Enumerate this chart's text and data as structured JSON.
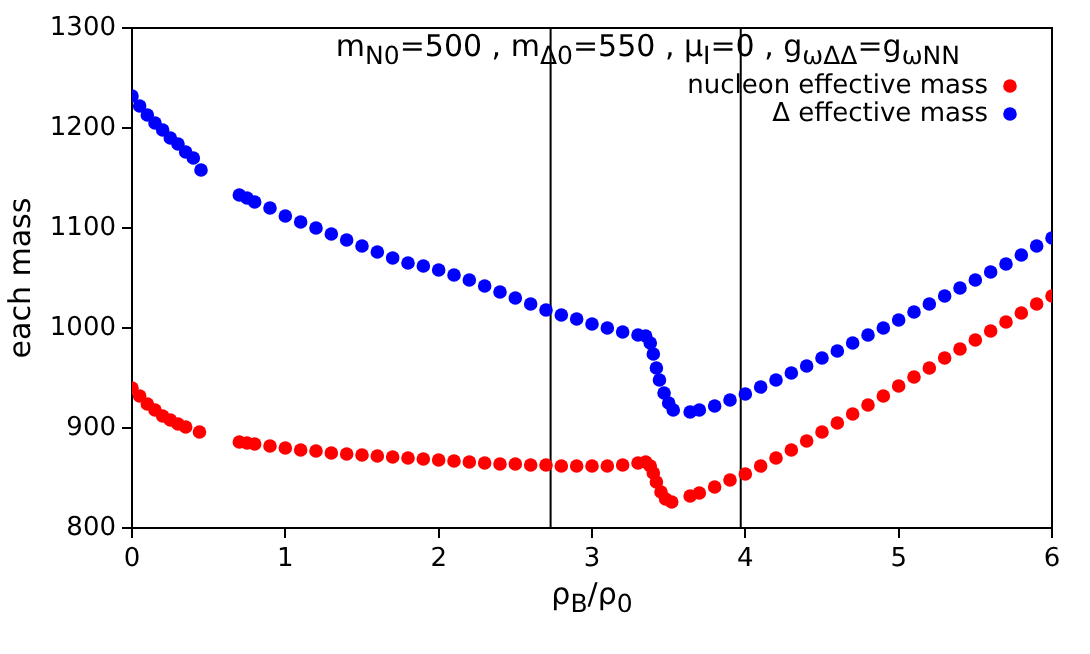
{
  "chart_data": {
    "type": "scatter",
    "title": "m$_{N0}$=500 , m$_{Δ0}$=550 , μ$_{I}$=0 , g$_{ωΔΔ}$=g$_{ωNN}$",
    "xlabel": "ρ$_{B}$/ρ$_{0}$",
    "ylabel": "each mass",
    "xlim": [
      0,
      6
    ],
    "xticks": [
      0,
      1,
      2,
      3,
      4,
      5,
      6
    ],
    "ylim": [
      800,
      1300
    ],
    "yticks": [
      800,
      900,
      1000,
      1100,
      1200,
      1300
    ],
    "grid": false,
    "legend": "top right",
    "marker": "circle",
    "ref_lines": [
      {
        "axis": "x",
        "value": 2.73,
        "color": "#000000"
      },
      {
        "axis": "x",
        "value": 3.97,
        "color": "#000000"
      }
    ],
    "series": [
      {
        "name": "nucleon effective mass",
        "color": "#ff0000",
        "x": [
          0,
          0.05,
          0.1,
          0.15,
          0.2,
          0.25,
          0.3,
          0.35,
          0.44,
          0.7,
          0.75,
          0.8,
          0.9,
          1.0,
          1.1,
          1.2,
          1.3,
          1.4,
          1.5,
          1.6,
          1.7,
          1.8,
          1.9,
          2.0,
          2.1,
          2.2,
          2.3,
          2.4,
          2.5,
          2.6,
          2.7,
          2.8,
          2.9,
          3.0,
          3.1,
          3.2,
          3.3,
          3.35,
          3.38,
          3.4,
          3.42,
          3.45,
          3.48,
          3.52,
          3.64,
          3.7,
          3.8,
          3.9,
          4.0,
          4.1,
          4.2,
          4.3,
          4.4,
          4.5,
          4.6,
          4.7,
          4.8,
          4.9,
          5.0,
          5.1,
          5.2,
          5.3,
          5.4,
          5.5,
          5.6,
          5.7,
          5.8,
          5.9,
          6.0
        ],
        "values": [
          940,
          932,
          924,
          918,
          912,
          908,
          904,
          901,
          896,
          886,
          885,
          884,
          882,
          880,
          878,
          877,
          875,
          874,
          873,
          872,
          871,
          870,
          869,
          868,
          867,
          866,
          865,
          864,
          864,
          863,
          863,
          862,
          862,
          862,
          862,
          863,
          865,
          866,
          862,
          855,
          846,
          836,
          829,
          826,
          832,
          835,
          841,
          848,
          854,
          862,
          870,
          878,
          887,
          896,
          905,
          914,
          923,
          932,
          942,
          951,
          960,
          970,
          979,
          988,
          997,
          1006,
          1015,
          1024,
          1032
        ]
      },
      {
        "name": "Δ effective mass",
        "color": "#0000ff",
        "x": [
          0,
          0.05,
          0.1,
          0.15,
          0.2,
          0.25,
          0.3,
          0.35,
          0.4,
          0.45,
          0.7,
          0.75,
          0.8,
          0.9,
          1.0,
          1.1,
          1.2,
          1.3,
          1.4,
          1.5,
          1.6,
          1.7,
          1.8,
          1.9,
          2.0,
          2.1,
          2.2,
          2.3,
          2.4,
          2.5,
          2.6,
          2.7,
          2.8,
          2.9,
          3.0,
          3.1,
          3.2,
          3.3,
          3.35,
          3.38,
          3.4,
          3.42,
          3.44,
          3.47,
          3.5,
          3.53,
          3.64,
          3.7,
          3.8,
          3.9,
          4.0,
          4.1,
          4.2,
          4.3,
          4.4,
          4.5,
          4.6,
          4.7,
          4.8,
          4.9,
          5.0,
          5.1,
          5.2,
          5.3,
          5.4,
          5.5,
          5.6,
          5.7,
          5.8,
          5.9,
          6.0
        ],
        "values": [
          1232,
          1222,
          1213,
          1205,
          1198,
          1190,
          1184,
          1176,
          1170,
          1158,
          1133,
          1130,
          1126,
          1120,
          1112,
          1106,
          1100,
          1094,
          1088,
          1082,
          1076,
          1070,
          1065,
          1062,
          1058,
          1053,
          1048,
          1042,
          1036,
          1030,
          1024,
          1018,
          1013,
          1009,
          1004,
          1000,
          996,
          993,
          992,
          985,
          974,
          960,
          948,
          935,
          925,
          918,
          916,
          918,
          922,
          928,
          934,
          941,
          948,
          955,
          962,
          970,
          977,
          985,
          993,
          1000,
          1008,
          1016,
          1024,
          1032,
          1040,
          1048,
          1056,
          1064,
          1073,
          1082,
          1090
        ]
      }
    ]
  }
}
